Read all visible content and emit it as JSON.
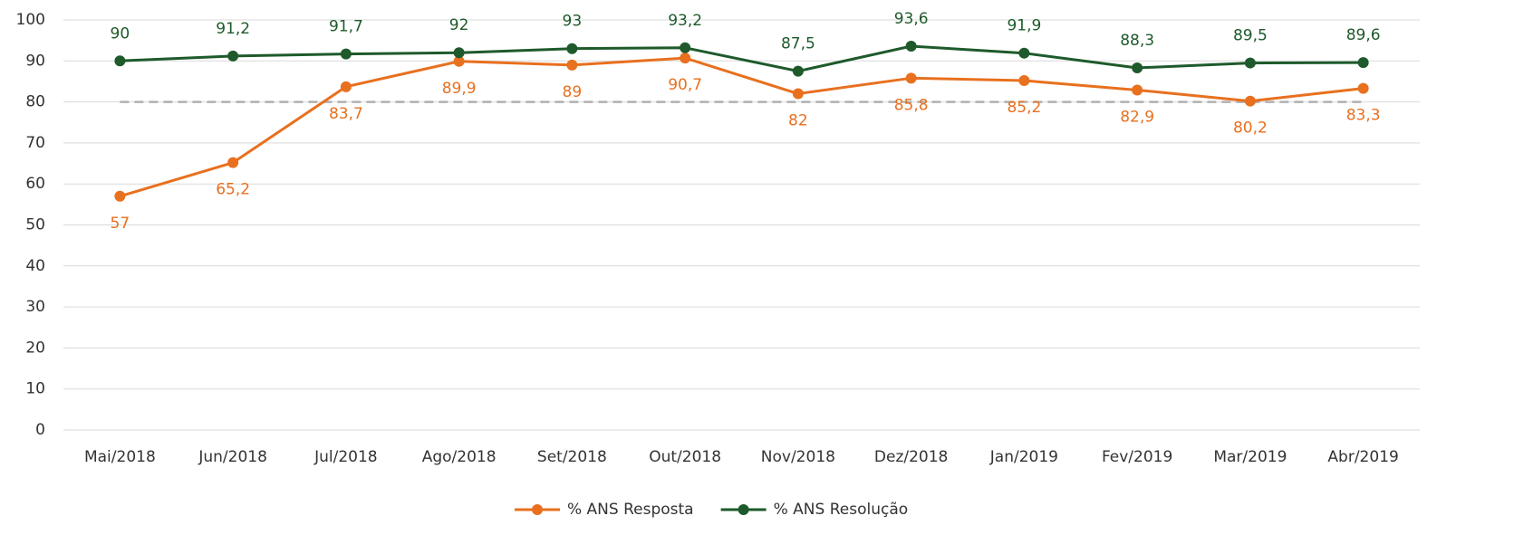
{
  "chart_data": {
    "type": "line",
    "categories": [
      "Mai/2018",
      "Jun/2018",
      "Jul/2018",
      "Ago/2018",
      "Set/2018",
      "Out/2018",
      "Nov/2018",
      "Dez/2018",
      "Jan/2019",
      "Fev/2019",
      "Mar/2019",
      "Abr/2019"
    ],
    "series": [
      {
        "name": "% ANS Resposta",
        "color": "#e8701f",
        "values": [
          57,
          65.2,
          83.7,
          89.9,
          89,
          90.7,
          82,
          85.8,
          85.2,
          82.9,
          80.2,
          83.3
        ],
        "value_labels": [
          "57",
          "65,2",
          "83,7",
          "89,9",
          "89",
          "90,7",
          "82",
          "85,8",
          "85,2",
          "82,9",
          "80,2",
          "83,3"
        ]
      },
      {
        "name": "% ANS Resolução",
        "color": "#1e5a2b",
        "values": [
          90,
          91.2,
          91.7,
          92,
          93,
          93.2,
          87.5,
          93.6,
          91.9,
          88.3,
          89.5,
          89.6
        ],
        "value_labels": [
          "90",
          "91,2",
          "91,7",
          "92",
          "93",
          "93,2",
          "87,5",
          "93,6",
          "91,9",
          "88,3",
          "89,5",
          "89,6"
        ]
      }
    ],
    "ylim": [
      0,
      100
    ],
    "yticks": [
      0,
      10,
      20,
      30,
      40,
      50,
      60,
      70,
      80,
      90,
      100
    ],
    "grid": true,
    "reference_line": {
      "value": 80,
      "color": "#b0b0b0",
      "style": "dashed"
    },
    "legend": "bottom"
  }
}
